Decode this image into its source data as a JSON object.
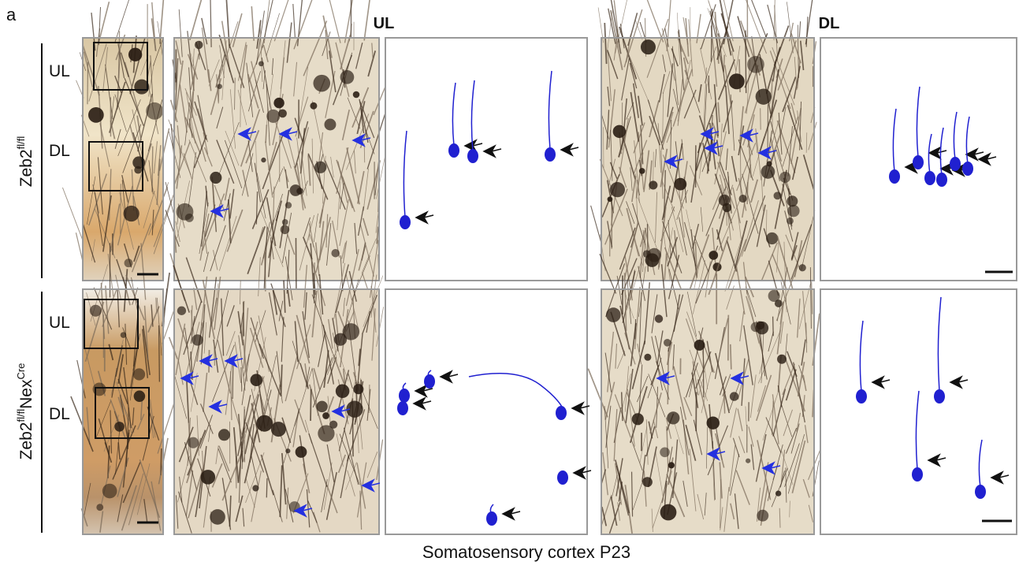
{
  "panel_label": "a",
  "column_headers": [
    "UL",
    "DL"
  ],
  "rows": [
    {
      "genotype": [
        "Zeb2",
        "fl/fl"
      ],
      "regions": [
        "UL",
        "DL"
      ]
    },
    {
      "genotype": [
        "Zeb2",
        "fl/fl",
        "Nex",
        "Cre"
      ],
      "regions": [
        "UL",
        "DL"
      ]
    }
  ],
  "caption": "Somatosensory cortex P23"
}
